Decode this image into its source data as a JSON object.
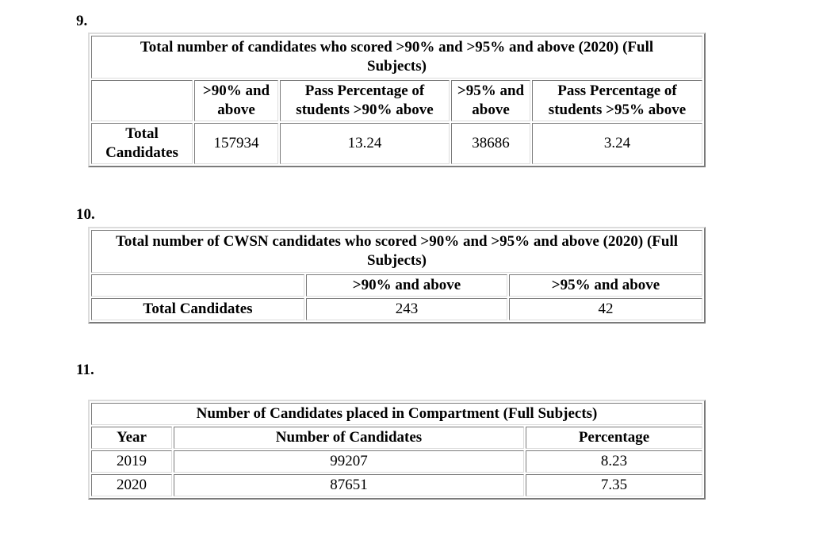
{
  "section9": {
    "number": "9.",
    "title": "Total number of candidates who scored >90% and >95% and above (2020) (Full Subjects)",
    "headers": [
      "",
      ">90% and above",
      "Pass Percentage of students >90% above",
      ">95% and above",
      "Pass Percentage of students >95% above"
    ],
    "row_label": "Total Candidates",
    "row_values": [
      "157934",
      "13.24",
      "38686",
      "3.24"
    ]
  },
  "section10": {
    "number": "10.",
    "title": "Total number of CWSN candidates who scored >90% and >95% and above (2020) (Full Subjects)",
    "headers": [
      "",
      ">90% and above",
      ">95% and above"
    ],
    "row_label": "Total Candidates",
    "row_values": [
      "243",
      "42"
    ]
  },
  "section11": {
    "number": "11.",
    "title": "Number of Candidates placed in Compartment (Full Subjects)",
    "headers": [
      "Year",
      "Number of Candidates",
      "Percentage"
    ],
    "rows": [
      [
        "2019",
        "99207",
        "8.23"
      ],
      [
        "2020",
        "87651",
        "7.35"
      ]
    ]
  }
}
